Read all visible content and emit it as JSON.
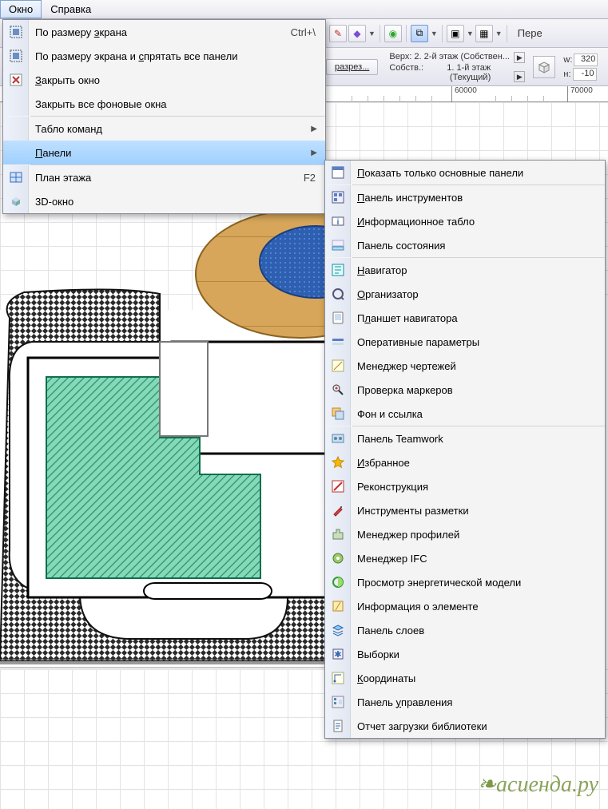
{
  "menubar": {
    "okno": "Окно",
    "spravka": "Справка"
  },
  "toolbar": {
    "pereh": "Пере"
  },
  "tb2": {
    "razrez": "разрез...",
    "topline": "Верх: 2. 2-й этаж (Собствен...",
    "sobstv": "Собств.:",
    "rightline1": "1. 1-й этаж",
    "rightline2": "(Текущий)",
    "w_label": "w:",
    "w_val": "320",
    "h_label": "н:",
    "h_val": "-10"
  },
  "ruler": {
    "t60": "60000",
    "t70": "70000"
  },
  "menu1": [
    {
      "label": "По размеру экрана",
      "u": 11,
      "accel": "Ctrl+\\",
      "icon": "fit"
    },
    {
      "label": "По размеру экрана и спрятать все панели",
      "u": 20,
      "icon": "fit"
    },
    {
      "label": "Закрыть окно",
      "u": 0,
      "icon": "close"
    },
    {
      "label": "Закрыть все фоновые окна",
      "u": -1
    },
    {
      "sep": true
    },
    {
      "label": "Табло команд",
      "u": -1,
      "sub": true
    },
    {
      "label": "Панели",
      "u": 0,
      "sub": true,
      "selected": true
    },
    {
      "sep": true
    },
    {
      "label": "План этажа",
      "u": -1,
      "accel": "F2",
      "icon": "plan"
    },
    {
      "label": "3D-окно",
      "u": -1,
      "icon": "3d"
    }
  ],
  "menu2": [
    {
      "label": "Показать только основные панели",
      "u": 0,
      "icon": "panel"
    },
    {
      "sep": true
    },
    {
      "label": "Панель инструментов",
      "u": 0,
      "icon": "tools"
    },
    {
      "label": "Информационное табло",
      "u": 0,
      "icon": "info"
    },
    {
      "label": "Панель состояния",
      "u": -1,
      "icon": "status"
    },
    {
      "sep": true
    },
    {
      "label": "Навигатор",
      "u": 0,
      "icon": "nav"
    },
    {
      "label": "Организатор",
      "u": 0,
      "icon": "org"
    },
    {
      "label": "Планшет навигатора",
      "u": 1,
      "icon": "tablet"
    },
    {
      "label": "Оперативные параметры",
      "u": -1,
      "icon": "oper"
    },
    {
      "label": "Менеджер чертежей",
      "u": -1,
      "icon": "draw"
    },
    {
      "label": "Проверка маркеров",
      "u": -1,
      "icon": "mark"
    },
    {
      "label": "Фон и ссылка",
      "u": -1,
      "icon": "bg"
    },
    {
      "sep": true
    },
    {
      "label": "Панель Teamwork",
      "u": -1,
      "icon": "tw"
    },
    {
      "label": "Избранное",
      "u": 0,
      "icon": "star"
    },
    {
      "label": "Реконструкция",
      "u": -1,
      "icon": "recon"
    },
    {
      "label": "Инструменты разметки",
      "u": -1,
      "icon": "markup"
    },
    {
      "label": "Менеджер профилей",
      "u": -1,
      "icon": "profile"
    },
    {
      "label": "Менеджер IFC",
      "u": -1,
      "icon": "ifc"
    },
    {
      "label": "Просмотр энергетической модели",
      "u": -1,
      "icon": "energy"
    },
    {
      "label": "Информация о элементе",
      "u": -1,
      "icon": "elem"
    },
    {
      "label": "Панель слоев",
      "u": -1,
      "icon": "layers"
    },
    {
      "label": "Выборки",
      "u": -1,
      "icon": "sel"
    },
    {
      "label": "Координаты",
      "u": 0,
      "icon": "coord"
    },
    {
      "label": "Панель управления",
      "u": 7,
      "icon": "ctrl"
    },
    {
      "label": "Отчет загрузки библиотеки",
      "u": -1,
      "icon": "report"
    }
  ],
  "watermark": "асиенда.ру",
  "colors": {
    "plan_fill": "#84d9b8",
    "plan_stroke": "#2f8f6d",
    "hatch_dark": "#2a2a2a",
    "wood": "#d7a65a",
    "lagoon": "#2e5fb0",
    "ground": "#b9b9b9"
  }
}
